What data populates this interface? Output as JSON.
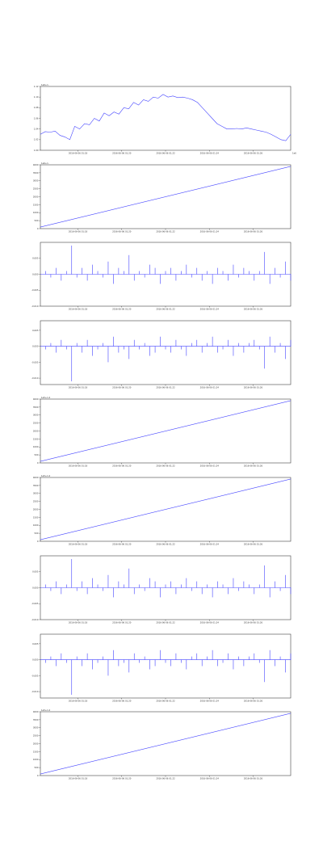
{
  "style": {
    "line_color": "#4444ff",
    "axis_color": "#444444"
  },
  "chart_data": [
    {
      "type": "line",
      "corner_label": "1e6+1.",
      "legend": "",
      "xticks": [
        "2016-06-06 01:18",
        "2016-06-06 01:20",
        "2016-06-06 01:22",
        "2016-06-06 01:24",
        "2016-06-06 01:26"
      ],
      "x_end_label": "1e6",
      "yticks": [
        "1.00",
        "1.02",
        "1.04",
        "1.06",
        "1.08",
        "1.10",
        "1.12"
      ],
      "ylim": [
        1.0,
        1.12
      ],
      "shape": "walk",
      "values": [
        1.03,
        1.035,
        1.034,
        1.036,
        1.028,
        1.025,
        1.02,
        1.045,
        1.04,
        1.05,
        1.048,
        1.06,
        1.055,
        1.07,
        1.065,
        1.072,
        1.068,
        1.08,
        1.078,
        1.09,
        1.085,
        1.095,
        1.092,
        1.1,
        1.098,
        1.105,
        1.1,
        1.102,
        1.099,
        1.1,
        1.098,
        1.095,
        1.09,
        1.08,
        1.07,
        1.06,
        1.05,
        1.045,
        1.04,
        1.04,
        1.041,
        1.04,
        1.042,
        1.04,
        1.038,
        1.036,
        1.034,
        1.03,
        1.025,
        1.02,
        1.018,
        1.03
      ]
    },
    {
      "type": "line",
      "corner_label": "1e6+1.",
      "legend": "",
      "xticks": [
        "2016-06-06 01:18",
        "2016-06-06 01:20",
        "2016-06-06 01:22",
        "2016-06-06 01:24",
        "2016-06-06 01:26"
      ],
      "x_end_label": "",
      "yticks": [
        "0",
        "500",
        "1000",
        "1500",
        "2000",
        "2500",
        "3000",
        "3500",
        "4000"
      ],
      "ylim": [
        0,
        4000
      ],
      "shape": "linear",
      "values": [
        100,
        3900
      ]
    },
    {
      "type": "line",
      "corner_label": "",
      "legend": "",
      "xticks": [
        "2016-06-06 01:18",
        "2016-06-06 01:20",
        "2016-06-06 01:22",
        "2016-06-06 01:24",
        "2016-06-06 01:26"
      ],
      "x_end_label": "",
      "yticks": [
        "-0.010",
        "-0.005",
        "0.000",
        "0.005"
      ],
      "ylim": [
        -0.01,
        0.01
      ],
      "shape": "spikes",
      "values": [
        0,
        0.001,
        -0.001,
        0.002,
        -0.002,
        0.001,
        0.009,
        -0.001,
        0.002,
        -0.002,
        0.003,
        0.001,
        -0.001,
        0.004,
        -0.003,
        0.002,
        0.001,
        0.006,
        -0.002,
        0.001,
        -0.001,
        0.003,
        0.002,
        -0.003,
        0.001,
        0.002,
        -0.002,
        0.001,
        0.003,
        -0.001,
        0.002,
        -0.002,
        0.001,
        -0.003,
        0.002,
        0.001,
        -0.002,
        0.003,
        -0.001,
        0.002,
        0.001,
        -0.002,
        0.001,
        0.007,
        -0.003,
        0.002,
        -0.001,
        0.004,
        -0.002
      ]
    },
    {
      "type": "line",
      "corner_label": "",
      "legend": "",
      "xticks": [
        "2016-06-06 01:18",
        "2016-06-06 01:20",
        "2016-06-06 01:22",
        "2016-06-06 01:24",
        "2016-06-06 01:26"
      ],
      "x_end_label": "",
      "yticks": [
        "-0.010",
        "-0.005",
        "0.000",
        "0.005"
      ],
      "ylim": [
        -0.012,
        0.008
      ],
      "shape": "spikes",
      "values": [
        0,
        -0.001,
        0.001,
        -0.002,
        0.002,
        -0.001,
        -0.011,
        0.001,
        -0.002,
        0.002,
        -0.003,
        -0.001,
        0.001,
        -0.005,
        0.003,
        -0.002,
        -0.001,
        -0.004,
        0.002,
        -0.001,
        0.001,
        -0.003,
        -0.002,
        0.003,
        -0.001,
        -0.002,
        0.002,
        -0.001,
        -0.003,
        0.001,
        0.002,
        -0.002,
        0.001,
        0.003,
        -0.002,
        -0.001,
        0.002,
        -0.003,
        0.001,
        -0.002,
        0.001,
        0.002,
        -0.001,
        -0.007,
        0.003,
        -0.002,
        0.001,
        -0.004,
        0.002
      ]
    },
    {
      "type": "line",
      "corner_label": "1e5+1.2",
      "legend": "",
      "xticks": [
        "2016-06-06 01:18",
        "2016-06-06 01:20",
        "2016-06-06 01:22",
        "2016-06-06 01:24",
        "2016-06-06 01:26"
      ],
      "x_end_label": "",
      "yticks": [
        "0",
        "500",
        "1000",
        "1500",
        "2000",
        "2500",
        "3000",
        "3500",
        "4000"
      ],
      "ylim": [
        0,
        4000
      ],
      "shape": "linear",
      "values": [
        100,
        3900
      ]
    },
    {
      "type": "line",
      "corner_label": "1e5+1.2",
      "legend": "",
      "xticks": [
        "2016-06-06 01:18",
        "2016-06-06 01:20",
        "2016-06-06 01:22",
        "2016-06-06 01:24",
        "2016-06-06 01:26"
      ],
      "x_end_label": "",
      "yticks": [
        "0",
        "500",
        "1000",
        "1500",
        "2000",
        "2500",
        "3000",
        "3500",
        "4000"
      ],
      "ylim": [
        0,
        4000
      ],
      "shape": "linear",
      "values": [
        100,
        3900
      ]
    },
    {
      "type": "line",
      "corner_label": "",
      "legend": "",
      "xticks": [
        "2016-06-06 01:18",
        "2016-06-06 01:20",
        "2016-06-06 01:22",
        "2016-06-06 01:24",
        "2016-06-06 01:26"
      ],
      "x_end_label": "",
      "yticks": [
        "-0.010",
        "-0.005",
        "0.000",
        "0.005"
      ],
      "ylim": [
        -0.01,
        0.01
      ],
      "shape": "spikes",
      "values": [
        0,
        0.001,
        -0.001,
        0.002,
        -0.002,
        0.001,
        0.009,
        -0.001,
        0.002,
        -0.002,
        0.003,
        0.001,
        -0.001,
        0.004,
        -0.003,
        0.002,
        0.001,
        0.006,
        -0.002,
        0.001,
        -0.001,
        0.003,
        0.002,
        -0.003,
        0.001,
        0.002,
        -0.002,
        0.001,
        0.003,
        -0.001,
        0.002,
        -0.002,
        0.001,
        -0.003,
        0.002,
        0.001,
        -0.002,
        0.003,
        -0.001,
        0.002,
        0.001,
        -0.002,
        0.001,
        0.007,
        -0.003,
        0.002,
        -0.001,
        0.004,
        -0.002
      ]
    },
    {
      "type": "line",
      "corner_label": "",
      "legend": "",
      "xticks": [
        "2016-06-06 01:18",
        "2016-06-06 01:20",
        "2016-06-06 01:22",
        "2016-06-06 01:24",
        "2016-06-06 01:26"
      ],
      "x_end_label": "",
      "yticks": [
        "-0.010",
        "-0.005",
        "0.000",
        "0.005"
      ],
      "ylim": [
        -0.012,
        0.008
      ],
      "shape": "spikes",
      "values": [
        0,
        -0.001,
        0.001,
        -0.002,
        0.002,
        -0.001,
        -0.011,
        0.001,
        -0.002,
        0.002,
        -0.003,
        -0.001,
        0.001,
        -0.005,
        0.003,
        -0.002,
        -0.001,
        -0.004,
        0.002,
        -0.001,
        0.001,
        -0.003,
        -0.002,
        0.003,
        -0.001,
        -0.002,
        0.002,
        -0.001,
        -0.003,
        0.001,
        0.002,
        -0.002,
        0.001,
        0.003,
        -0.002,
        -0.001,
        0.002,
        -0.003,
        0.001,
        -0.002,
        0.001,
        0.002,
        -0.001,
        -0.007,
        0.003,
        -0.002,
        0.001,
        -0.004,
        0.002
      ]
    },
    {
      "type": "line",
      "corner_label": "1e5+1.2",
      "legend": "",
      "xticks": [
        "2016-06-06 01:18",
        "2016-06-06 01:20",
        "2016-06-06 01:22",
        "2016-06-06 01:24",
        "2016-06-06 01:26"
      ],
      "x_end_label": "",
      "yticks": [
        "0",
        "500",
        "1000",
        "1500",
        "2000",
        "2500",
        "3000",
        "3500",
        "4000"
      ],
      "ylim": [
        0,
        4000
      ],
      "shape": "linear",
      "values": [
        100,
        3900
      ]
    }
  ]
}
